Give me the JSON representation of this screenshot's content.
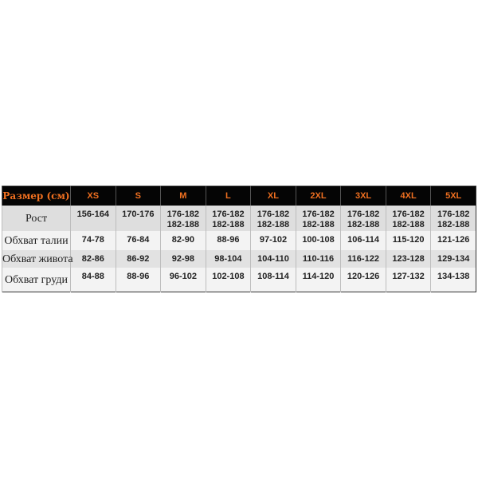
{
  "table": {
    "header": [
      "Размер (см)",
      "XS",
      "S",
      "M",
      "L",
      "XL",
      "2XL",
      "3XL",
      "4XL",
      "5XL"
    ],
    "rows": [
      {
        "label": "Рост",
        "values": [
          [
            "156-164"
          ],
          [
            "170-176"
          ],
          [
            "176-182",
            "182-188"
          ],
          [
            "176-182",
            "182-188"
          ],
          [
            "176-182",
            "182-188"
          ],
          [
            "176-182",
            "182-188"
          ],
          [
            "176-182",
            "182-188"
          ],
          [
            "176-182",
            "182-188"
          ],
          [
            "176-182",
            "182-188"
          ]
        ]
      },
      {
        "label": "Обхват талии",
        "values": [
          [
            "74-78"
          ],
          [
            "76-84"
          ],
          [
            "82-90"
          ],
          [
            "88-96"
          ],
          [
            "97-102"
          ],
          [
            "100-108"
          ],
          [
            "106-114"
          ],
          [
            "115-120"
          ],
          [
            "121-126"
          ]
        ]
      },
      {
        "label": "Обхват живота",
        "values": [
          [
            "82-86"
          ],
          [
            "86-92"
          ],
          [
            "92-98"
          ],
          [
            "98-104"
          ],
          [
            "104-110"
          ],
          [
            "110-116"
          ],
          [
            "116-122"
          ],
          [
            "123-128"
          ],
          [
            "129-134"
          ]
        ]
      },
      {
        "label": "Обхват груди",
        "values": [
          [
            "84-88"
          ],
          [
            "88-96"
          ],
          [
            "96-102"
          ],
          [
            "102-108"
          ],
          [
            "108-114"
          ],
          [
            "114-120"
          ],
          [
            "120-126"
          ],
          [
            "127-132"
          ],
          [
            "134-138"
          ]
        ]
      }
    ]
  },
  "colors": {
    "header_bg": "#050505",
    "header_text": "#f07020"
  }
}
